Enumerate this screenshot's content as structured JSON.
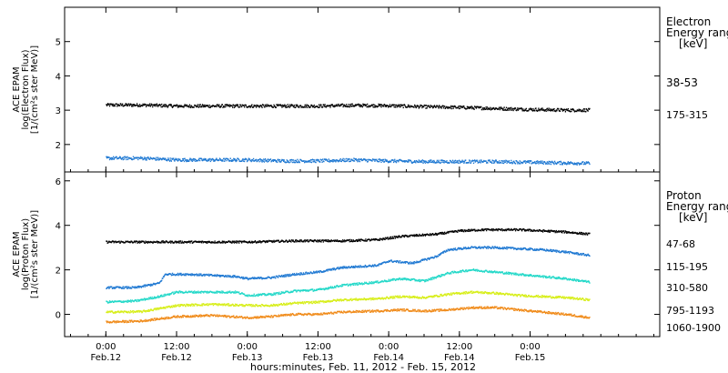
{
  "chart_data": [
    {
      "type": "scatter",
      "panel": "electron",
      "ylabel_lines": [
        "ACE EPAM",
        "log(Electron Flux)",
        "[1/(cm²s ster MeV)]"
      ],
      "legend_title_lines": [
        "Electron",
        "Energy range",
        "[keV]"
      ],
      "ylim": [
        1.2,
        6.0
      ],
      "yticks": [
        "2",
        "3",
        "4",
        "5"
      ],
      "series": [
        {
          "name": "38-53",
          "color": "#000000",
          "x": [
            0,
            6,
            12,
            18,
            24,
            30,
            36,
            42,
            48,
            54,
            60,
            66,
            72,
            78,
            82
          ],
          "y": [
            3.15,
            3.15,
            3.12,
            3.12,
            3.12,
            3.12,
            3.12,
            3.14,
            3.13,
            3.1,
            3.08,
            3.05,
            3.02,
            3.0,
            3.0
          ]
        },
        {
          "name": "175-315",
          "color": "#1e78d2",
          "x": [
            0,
            6,
            12,
            18,
            24,
            30,
            36,
            42,
            48,
            54,
            60,
            66,
            72,
            78,
            82
          ],
          "y": [
            1.6,
            1.6,
            1.55,
            1.55,
            1.55,
            1.52,
            1.52,
            1.55,
            1.52,
            1.5,
            1.5,
            1.5,
            1.48,
            1.46,
            1.45
          ]
        }
      ]
    },
    {
      "type": "scatter",
      "panel": "proton",
      "ylabel_lines": [
        "ACE EPAM",
        "log(Proton Flux)",
        "[1/(cm²s ster MeV)]"
      ],
      "legend_title_lines": [
        "Proton",
        "Energy range",
        "[keV]"
      ],
      "ylim": [
        -1.0,
        6.4
      ],
      "yticks": [
        "0",
        "2",
        "4",
        "6"
      ],
      "xlabel": "hours:minutes, Feb. 11, 2012 - Feb. 15, 2012",
      "xlim": [
        -7,
        94
      ],
      "xticks": [
        {
          "x": 0,
          "top": "0:00",
          "bottom": "Feb.12"
        },
        {
          "x": 12,
          "top": "12:00",
          "bottom": "Feb.12"
        },
        {
          "x": 24,
          "top": "0:00",
          "bottom": "Feb.13"
        },
        {
          "x": 36,
          "top": "12:00",
          "bottom": "Feb.13"
        },
        {
          "x": 48,
          "top": "0:00",
          "bottom": "Feb.14"
        },
        {
          "x": 60,
          "top": "12:00",
          "bottom": "Feb.14"
        },
        {
          "x": 72,
          "top": "0:00",
          "bottom": "Feb.15"
        }
      ],
      "series": [
        {
          "name": "47-68",
          "color": "#000000",
          "x": [
            0,
            8,
            16,
            24,
            32,
            40,
            46,
            50,
            56,
            60,
            64,
            70,
            74,
            78,
            82
          ],
          "y": [
            3.25,
            3.25,
            3.25,
            3.25,
            3.3,
            3.3,
            3.35,
            3.5,
            3.6,
            3.75,
            3.8,
            3.8,
            3.75,
            3.7,
            3.6
          ]
        },
        {
          "name": "115-195",
          "color": "#1e78d2",
          "x": [
            0,
            5,
            9,
            10,
            14,
            18,
            22,
            24,
            28,
            32,
            36,
            40,
            46,
            48,
            52,
            56,
            58,
            62,
            66,
            70,
            74,
            78,
            82
          ],
          "y": [
            1.2,
            1.2,
            1.4,
            1.8,
            1.8,
            1.75,
            1.7,
            1.6,
            1.65,
            1.8,
            1.9,
            2.1,
            2.2,
            2.4,
            2.3,
            2.6,
            2.9,
            3.0,
            3.0,
            2.95,
            2.9,
            2.8,
            2.65
          ]
        },
        {
          "name": "310-580",
          "color": "#22d8c8",
          "x": [
            0,
            5,
            9,
            12,
            18,
            22,
            24,
            28,
            32,
            36,
            40,
            46,
            50,
            54,
            58,
            62,
            66,
            70,
            74,
            78,
            82
          ],
          "y": [
            0.55,
            0.6,
            0.8,
            1.0,
            1.0,
            1.0,
            0.85,
            0.9,
            1.05,
            1.1,
            1.3,
            1.45,
            1.6,
            1.5,
            1.85,
            2.0,
            1.9,
            1.8,
            1.7,
            1.6,
            1.45
          ]
        },
        {
          "name": "795-1193",
          "color": "#d7ee18",
          "x": [
            0,
            6,
            12,
            18,
            24,
            28,
            32,
            36,
            40,
            46,
            50,
            54,
            58,
            62,
            66,
            70,
            74,
            78,
            82
          ],
          "y": [
            0.1,
            0.12,
            0.4,
            0.45,
            0.4,
            0.4,
            0.5,
            0.55,
            0.65,
            0.7,
            0.8,
            0.75,
            0.9,
            1.0,
            0.95,
            0.85,
            0.8,
            0.75,
            0.65
          ]
        },
        {
          "name": "1060-1900",
          "color": "#f08a18",
          "x": [
            0,
            6,
            12,
            18,
            24,
            28,
            32,
            36,
            40,
            46,
            50,
            54,
            58,
            62,
            66,
            70,
            74,
            78,
            82
          ],
          "y": [
            -0.35,
            -0.3,
            -0.1,
            -0.05,
            -0.15,
            -0.1,
            0.0,
            0.0,
            0.1,
            0.15,
            0.2,
            0.15,
            0.2,
            0.3,
            0.3,
            0.2,
            0.1,
            0.0,
            -0.15
          ]
        }
      ]
    }
  ]
}
